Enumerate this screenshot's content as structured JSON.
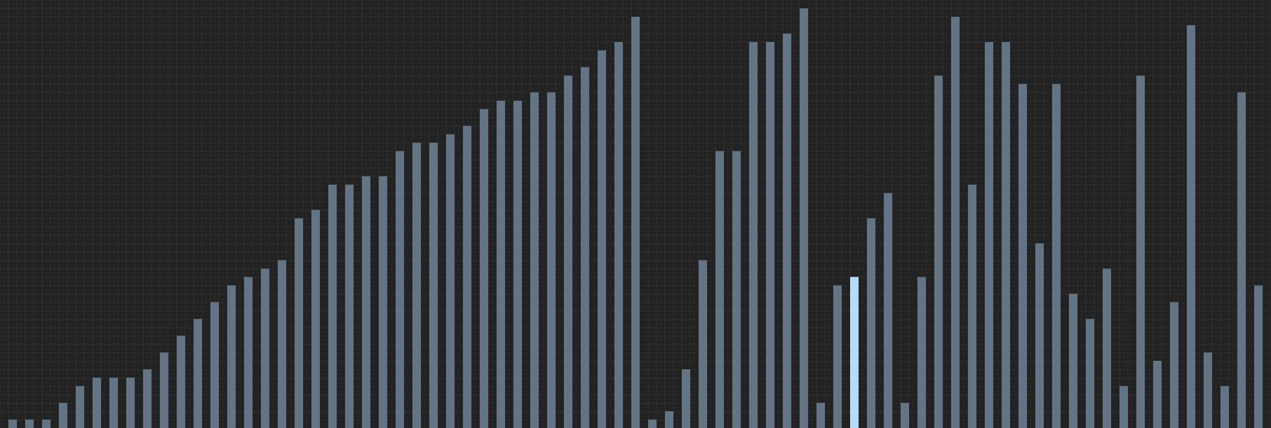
{
  "chart_data": {
    "type": "bar",
    "title": "",
    "xlabel": "",
    "ylabel": "",
    "ylim": [
      0,
      100
    ],
    "grid": true,
    "legend": "none",
    "highlight_index": 50,
    "values": [
      2,
      2,
      2,
      6,
      10,
      12,
      12,
      12,
      14,
      18,
      22,
      26,
      30,
      34,
      36,
      38,
      40,
      50,
      52,
      58,
      58,
      60,
      60,
      66,
      68,
      68,
      70,
      72,
      76,
      78,
      78,
      80,
      80,
      84,
      86,
      90,
      92,
      98,
      2,
      4,
      14,
      40,
      66,
      66,
      92,
      92,
      94,
      100,
      6,
      34,
      36,
      50,
      56,
      6,
      36,
      84,
      98,
      58,
      92,
      92,
      82,
      44,
      82,
      32,
      26,
      38,
      10,
      84,
      16,
      30,
      96,
      18,
      10,
      80,
      34
    ]
  },
  "colors": {
    "background": "#232323",
    "grid": "#2e2e2e",
    "bar": "#627585",
    "highlight": "#b4dcff"
  }
}
